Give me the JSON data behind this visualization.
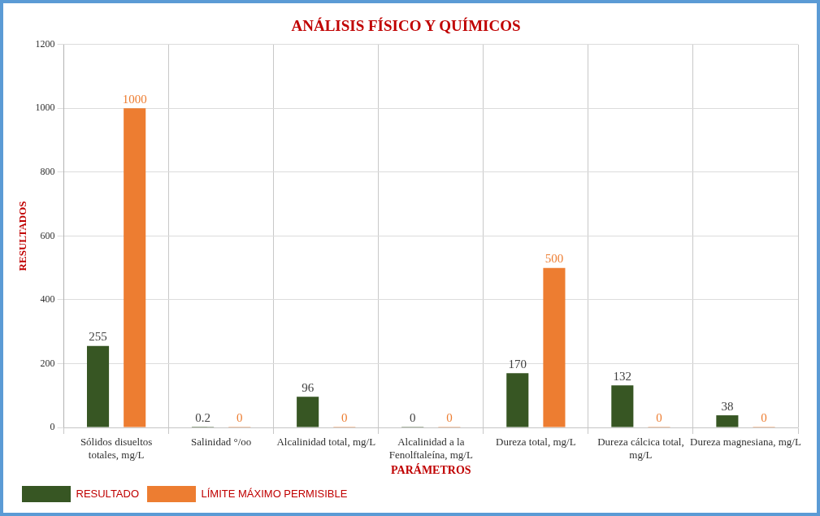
{
  "chart_data": {
    "type": "bar",
    "title": "ANÁLISIS FÍSICO Y QUÍMICOS",
    "xlabel": "PARÁMETROS",
    "ylabel": "RESULTADOS",
    "categories": [
      "Sólidos disueltos totales, mg/L",
      "Salinidad °/oo",
      "Alcalinidad total, mg/L",
      "Alcalinidad a la Fenolftaleína, mg/L",
      "Dureza total, mg/L",
      "Dureza cálcica total, mg/L",
      "Dureza magnesiana, mg/L"
    ],
    "series": [
      {
        "name": "RESULTADO",
        "color": "#375623",
        "values": [
          255,
          0.2,
          96,
          0,
          170,
          132,
          38
        ]
      },
      {
        "name": "LÍMITE MÁXIMO PERMISIBLE",
        "color": "#ed7d31",
        "values": [
          1000,
          0,
          0,
          0,
          500,
          0,
          0
        ]
      }
    ],
    "ylim": [
      0,
      1200
    ],
    "yticks": [
      0,
      200,
      400,
      600,
      800,
      1000,
      1200
    ],
    "grid": true,
    "legend": "bottom left",
    "data_labels": true
  }
}
